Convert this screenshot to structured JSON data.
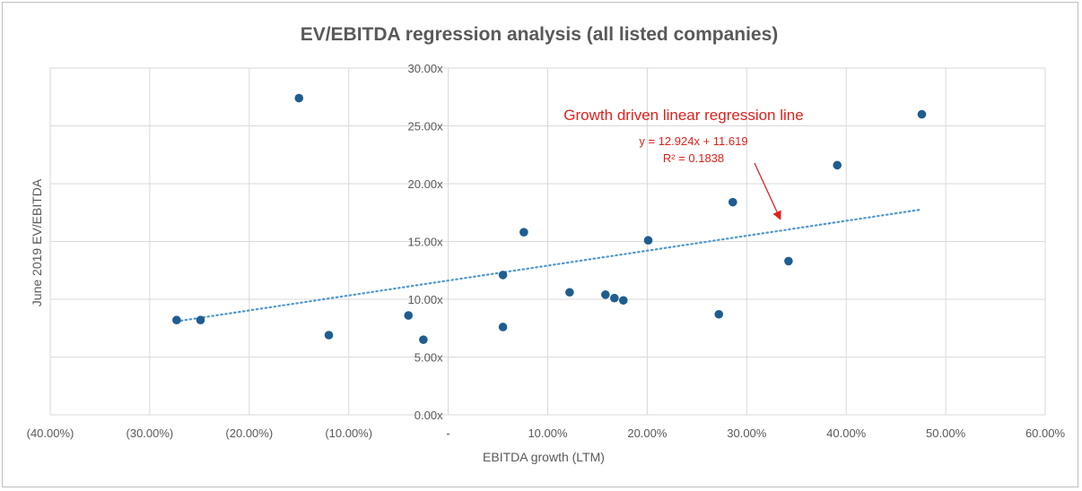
{
  "chart_data": {
    "type": "scatter",
    "title": "EV/EBITDA regression analysis (all listed companies)",
    "xlabel": "EBITDA growth (LTM)",
    "ylabel": "June 2019 EV/EBITDA",
    "xlim": [
      -0.4,
      0.6
    ],
    "ylim": [
      0,
      30
    ],
    "x_ticks": [
      -0.4,
      -0.3,
      -0.2,
      -0.1,
      0,
      0.1,
      0.2,
      0.3,
      0.4,
      0.5,
      0.6
    ],
    "x_tick_labels": [
      "(40.00%)",
      "(30.00%)",
      "(20.00%)",
      "(10.00%)",
      "-",
      "10.00%",
      "20.00%",
      "30.00%",
      "40.00%",
      "50.00%",
      "60.00%"
    ],
    "y_ticks": [
      0,
      5,
      10,
      15,
      20,
      25,
      30
    ],
    "y_tick_labels": [
      "0.00x",
      "5.00x",
      "10.00x",
      "15.00x",
      "20.00x",
      "25.00x",
      "30.00x"
    ],
    "grid": true,
    "points": [
      {
        "x": -0.273,
        "y": 8.2
      },
      {
        "x": -0.249,
        "y": 8.2
      },
      {
        "x": -0.15,
        "y": 27.4
      },
      {
        "x": -0.12,
        "y": 6.9
      },
      {
        "x": -0.04,
        "y": 8.6
      },
      {
        "x": -0.025,
        "y": 6.5
      },
      {
        "x": 0.055,
        "y": 12.1
      },
      {
        "x": 0.055,
        "y": 7.6
      },
      {
        "x": 0.076,
        "y": 15.8
      },
      {
        "x": 0.122,
        "y": 10.6
      },
      {
        "x": 0.158,
        "y": 10.4
      },
      {
        "x": 0.167,
        "y": 10.1
      },
      {
        "x": 0.176,
        "y": 9.9
      },
      {
        "x": 0.201,
        "y": 15.1
      },
      {
        "x": 0.272,
        "y": 8.7
      },
      {
        "x": 0.286,
        "y": 18.4
      },
      {
        "x": 0.342,
        "y": 13.3
      },
      {
        "x": 0.391,
        "y": 21.6
      },
      {
        "x": 0.476,
        "y": 26.0
      }
    ],
    "trendline": {
      "slope": 12.924,
      "intercept": 11.619,
      "x_range": [
        -0.273,
        0.476
      ]
    },
    "annotations": {
      "headline": "Growth driven linear regression line",
      "equation": "y = 12.924x + 11.619",
      "r_squared": "R² = 0.1838"
    },
    "colors": {
      "point": "#1f5d91",
      "trendline": "#4f97d1",
      "annotation": "#e0201b",
      "grid": "#d9d9d9",
      "text": "#595959"
    }
  }
}
